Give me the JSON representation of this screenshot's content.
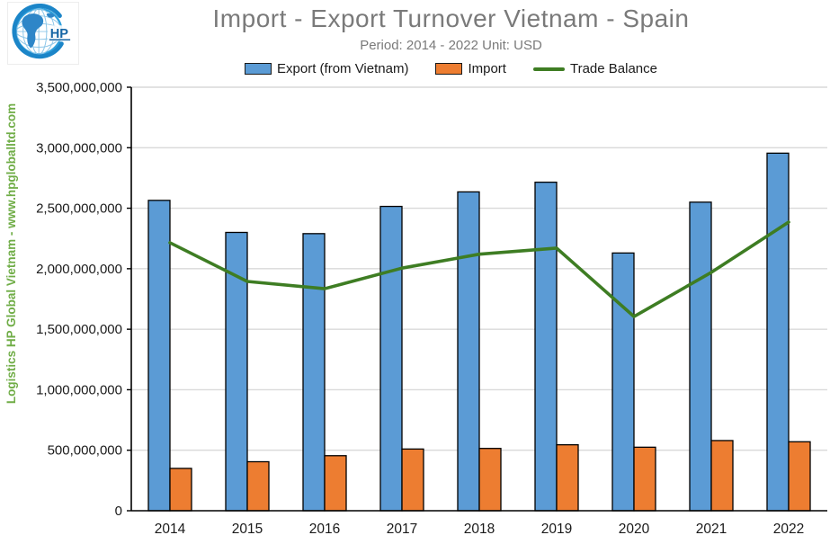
{
  "header": {
    "logo_text": "HP",
    "title": "Import - Export Turnover Vietnam - Spain",
    "subtitle": "Period: 2014 - 2022 Unit: USD"
  },
  "watermark": {
    "text": "Logistics HP Global Vietnam - www.hpgloballtd.com",
    "color": "#70AD47"
  },
  "chart_data": {
    "type": "bar",
    "subtype": "grouped bars with line overlay",
    "title": "Import - Export Turnover Vietnam - Spain",
    "subtitle": "Period: 2014 - 2022 Unit: USD",
    "categories": [
      "2014",
      "2015",
      "2016",
      "2017",
      "2018",
      "2019",
      "2020",
      "2021",
      "2022"
    ],
    "series": [
      {
        "name": "Export (from Vietnam)",
        "type": "bar",
        "color": "#5B9BD5",
        "values": [
          2565000000,
          2300000000,
          2290000000,
          2515000000,
          2635000000,
          2715000000,
          2130000000,
          2550000000,
          2955000000
        ]
      },
      {
        "name": "Import",
        "type": "bar",
        "color": "#ED7D31",
        "values": [
          350000000,
          405000000,
          455000000,
          510000000,
          515000000,
          545000000,
          525000000,
          580000000,
          570000000
        ]
      },
      {
        "name": "Trade Balance",
        "type": "line",
        "color": "#3E7D23",
        "values": [
          2215000000,
          1895000000,
          1835000000,
          2005000000,
          2120000000,
          2170000000,
          1605000000,
          1970000000,
          2385000000
        ]
      }
    ],
    "xlabel": "",
    "ylabel": "",
    "ylim": [
      0,
      3500000000
    ],
    "ytick_step": 500000000,
    "ytick_labels": [
      "0",
      "500,000,000",
      "1,000,000,000",
      "1,500,000,000",
      "2,000,000,000",
      "2,500,000,000",
      "3,000,000,000",
      "3,500,000,000"
    ],
    "grid": true,
    "grid_color": "#D9D9D9",
    "axis_color": "#000000",
    "legend_position": "top"
  }
}
